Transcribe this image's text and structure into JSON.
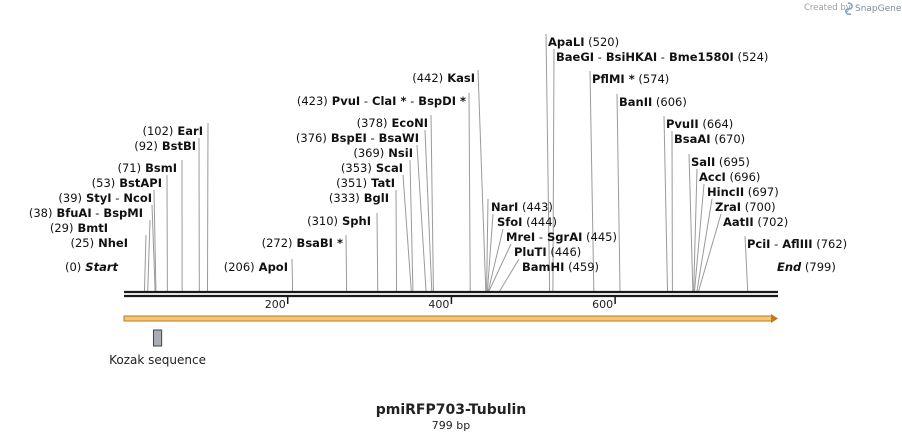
{
  "credit": {
    "prefix": "Created by",
    "brand": "SnapGene"
  },
  "map": {
    "name": "pmiRFP703-Tubulin",
    "length_label": "799 bp",
    "length_bp": 799,
    "ticks": [
      200,
      400,
      600
    ],
    "feature": {
      "name": "Kozak sequence",
      "start_bp": 36,
      "end_bp": 46
    }
  },
  "sites": [
    {
      "bp": 0,
      "lx": 125,
      "items": [
        {
          "pos": "(0)"
        },
        {
          "end": "Start"
        }
      ]
    },
    {
      "bp": 25,
      "lx": 146,
      "items": [
        {
          "pos": "(25)"
        },
        {
          "name": "NheI"
        }
      ]
    },
    {
      "bp": 29,
      "lx": 150,
      "items": [
        {
          "pos": "(29)"
        },
        {
          "name": "BmtI"
        }
      ]
    },
    {
      "bp": 38,
      "lx": 152,
      "items": [
        {
          "pos": "(38)"
        },
        {
          "name": "BfuAI"
        },
        {
          "sep": "-"
        },
        {
          "name": "BspMI"
        }
      ]
    },
    {
      "bp": 39,
      "lx": 154,
      "items": [
        {
          "pos": "(39)"
        },
        {
          "name": "StyI"
        },
        {
          "sep": "-"
        },
        {
          "name": "NcoI"
        }
      ]
    },
    {
      "bp": 53,
      "lx": 167,
      "items": [
        {
          "pos": "(53)"
        },
        {
          "name": "BstAPI"
        }
      ]
    },
    {
      "bp": 71,
      "lx": 182,
      "items": [
        {
          "pos": "(71)"
        },
        {
          "name": "BsmI"
        }
      ]
    },
    {
      "bp": 92,
      "lx": 199,
      "items": [
        {
          "pos": "(92)"
        },
        {
          "name": "BstBI"
        }
      ]
    },
    {
      "bp": 102,
      "lx": 208,
      "items": [
        {
          "pos": "(102)"
        },
        {
          "name": "EarI"
        }
      ]
    },
    {
      "bp": 206,
      "lx": 292,
      "items": [
        {
          "pos": "(206)"
        },
        {
          "name": "ApoI"
        }
      ]
    },
    {
      "bp": 272,
      "lx": 346,
      "items": [
        {
          "pos": "(272)"
        },
        {
          "name": "BsaBI"
        },
        {
          "star": "*"
        }
      ]
    },
    {
      "bp": 310,
      "lx": 377,
      "items": [
        {
          "pos": "(310)"
        },
        {
          "name": "SphI"
        }
      ]
    },
    {
      "bp": 333,
      "lx": 396,
      "items": [
        {
          "pos": "(333)"
        },
        {
          "name": "BglI"
        }
      ]
    },
    {
      "bp": 351,
      "lx": 403,
      "items": [
        {
          "pos": "(351)"
        },
        {
          "name": "TatI"
        }
      ]
    },
    {
      "bp": 353,
      "lx": 410,
      "items": [
        {
          "pos": "(353)"
        },
        {
          "name": "ScaI"
        }
      ]
    },
    {
      "bp": 369,
      "lx": 417,
      "items": [
        {
          "pos": "(369)"
        },
        {
          "name": "NsiI"
        }
      ]
    },
    {
      "bp": 376,
      "lx": 425,
      "items": [
        {
          "pos": "(376)"
        },
        {
          "name": "BspEI"
        },
        {
          "sep": "-"
        },
        {
          "name": "BsaWI"
        }
      ]
    },
    {
      "bp": 378,
      "lx": 431,
      "items": [
        {
          "pos": "(378)"
        },
        {
          "name": "EcoNI"
        }
      ]
    },
    {
      "bp": 423,
      "lx": 469,
      "items": [
        {
          "pos": "(423)"
        },
        {
          "name": "PvuI"
        },
        {
          "sep": "-"
        },
        {
          "name": "ClaI"
        },
        {
          "star": "*"
        },
        {
          "sep": "-"
        },
        {
          "name": "BspDI"
        },
        {
          "star": "*"
        }
      ]
    },
    {
      "bp": 442,
      "lx": 478,
      "items": [
        {
          "pos": "(442)"
        },
        {
          "name": "KasI"
        }
      ]
    },
    {
      "bp": 443,
      "lx": 488,
      "items": [
        {
          "name": "NarI"
        },
        {
          "pos": "(443)"
        }
      ]
    },
    {
      "bp": 444,
      "lx": 493,
      "items": [
        {
          "name": "SfoI"
        },
        {
          "pos": "(444)"
        }
      ]
    },
    {
      "bp": 445,
      "lx": 503,
      "items": [
        {
          "name": "MreI"
        },
        {
          "sep": "-"
        },
        {
          "name": "SgrAI"
        },
        {
          "pos": "(445)"
        }
      ]
    },
    {
      "bp": 446,
      "lx": 511,
      "items": [
        {
          "name": "PluTI"
        },
        {
          "pos": "(446)"
        }
      ]
    },
    {
      "bp": 459,
      "lx": 519,
      "items": [
        {
          "name": "BamHI"
        },
        {
          "pos": "(459)"
        }
      ]
    },
    {
      "bp": 520,
      "lx": 546,
      "items": [
        {
          "name": "ApaLI"
        },
        {
          "pos": "(520)"
        }
      ]
    },
    {
      "bp": 524,
      "lx": 554,
      "items": [
        {
          "name": "BaeGI"
        },
        {
          "sep": "-"
        },
        {
          "name": "BsiHKAI"
        },
        {
          "sep": "-"
        },
        {
          "name": "Bme1580I"
        },
        {
          "pos": "(524)"
        }
      ]
    },
    {
      "bp": 574,
      "lx": 590,
      "items": [
        {
          "name": "PflMI"
        },
        {
          "star": "*"
        },
        {
          "pos": "(574)"
        }
      ]
    },
    {
      "bp": 606,
      "lx": 617,
      "items": [
        {
          "name": "BanII"
        },
        {
          "pos": "(606)"
        }
      ]
    },
    {
      "bp": 664,
      "lx": 664,
      "items": [
        {
          "name": "PvuII"
        },
        {
          "pos": "(664)"
        }
      ]
    },
    {
      "bp": 670,
      "lx": 672,
      "items": [
        {
          "name": "BsaAI"
        },
        {
          "pos": "(670)"
        }
      ]
    },
    {
      "bp": 695,
      "lx": 689,
      "items": [
        {
          "name": "SalI"
        },
        {
          "pos": "(695)"
        }
      ]
    },
    {
      "bp": 696,
      "lx": 697,
      "items": [
        {
          "name": "AccI"
        },
        {
          "pos": "(696)"
        }
      ]
    },
    {
      "bp": 697,
      "lx": 704,
      "items": [
        {
          "name": "HincII"
        },
        {
          "pos": "(697)"
        }
      ]
    },
    {
      "bp": 700,
      "lx": 712,
      "items": [
        {
          "name": "ZraI"
        },
        {
          "pos": "(700)"
        }
      ]
    },
    {
      "bp": 702,
      "lx": 721,
      "items": [
        {
          "name": "AatII"
        },
        {
          "pos": "(702)"
        }
      ]
    },
    {
      "bp": 762,
      "lx": 745,
      "items": [
        {
          "name": "PciI"
        },
        {
          "sep": "-"
        },
        {
          "name": "AflIII"
        },
        {
          "pos": "(762)"
        }
      ]
    },
    {
      "bp": 799,
      "lx": 777,
      "items": [
        {
          "end": "End"
        },
        {
          "pos": "(799)"
        }
      ]
    }
  ],
  "colors": {
    "feature_fill": "#f2c77c",
    "feature_stroke": "#c07a17",
    "backbone": "#1a1a1a",
    "kozak_fill": "#a9adb3",
    "kozak_stroke": "#444444"
  }
}
